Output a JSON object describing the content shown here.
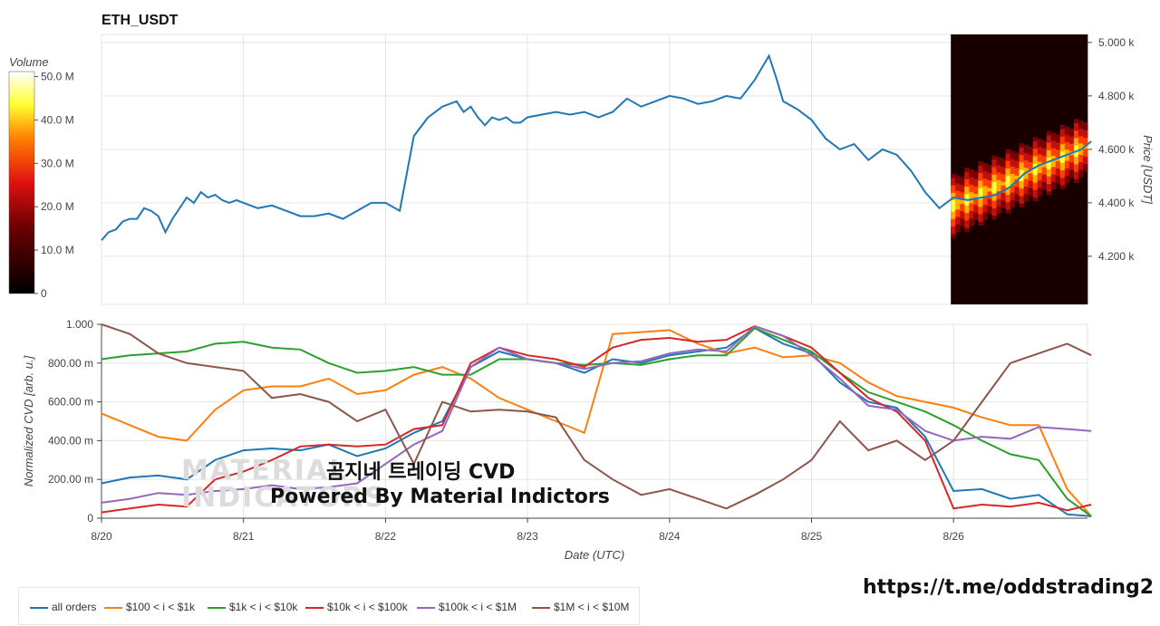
{
  "chart_data": [
    {
      "type": "line",
      "title": "ETH_USDT",
      "ylabel": "Price [USDT]",
      "ylim": [
        4020,
        5030
      ],
      "y_ticks": [
        "4.200 k",
        "4.400 k",
        "4.600 k",
        "4.800 k",
        "5.000 k"
      ],
      "series": [
        {
          "color": "#1f77b4",
          "x": [
            0,
            0.05,
            0.1,
            0.15,
            0.2,
            0.25,
            0.3,
            0.35,
            0.4,
            0.45,
            0.5,
            0.55,
            0.6,
            0.65,
            0.7,
            0.75,
            0.8,
            0.85,
            0.9,
            0.95,
            1.0,
            1.1,
            1.2,
            1.3,
            1.4,
            1.5,
            1.6,
            1.7,
            1.8,
            1.9,
            2.0,
            2.1,
            2.2,
            2.3,
            2.4,
            2.5,
            2.55,
            2.6,
            2.65,
            2.7,
            2.75,
            2.8,
            2.85,
            2.9,
            2.95,
            3.0,
            3.1,
            3.2,
            3.3,
            3.4,
            3.5,
            3.6,
            3.7,
            3.8,
            3.9,
            4.0,
            4.1,
            4.2,
            4.3,
            4.4,
            4.5,
            4.6,
            4.7,
            4.75,
            4.8,
            4.9,
            5.0,
            5.1,
            5.2,
            5.3,
            5.4,
            5.5,
            5.6,
            5.7,
            5.8,
            5.9,
            6.0,
            6.1,
            6.2,
            6.3,
            6.4,
            6.5,
            6.6,
            6.7,
            6.8,
            6.9,
            6.97
          ],
          "y": [
            4260,
            4290,
            4300,
            4330,
            4340,
            4340,
            4380,
            4370,
            4350,
            4290,
            4340,
            4380,
            4420,
            4400,
            4440,
            4420,
            4430,
            4410,
            4400,
            4410,
            4400,
            4380,
            4390,
            4370,
            4350,
            4350,
            4360,
            4340,
            4370,
            4400,
            4400,
            4370,
            4650,
            4720,
            4760,
            4780,
            4740,
            4760,
            4720,
            4690,
            4720,
            4710,
            4720,
            4700,
            4700,
            4720,
            4730,
            4740,
            4730,
            4740,
            4720,
            4740,
            4790,
            4760,
            4780,
            4800,
            4790,
            4770,
            4780,
            4800,
            4790,
            4860,
            4950,
            4870,
            4780,
            4750,
            4710,
            4640,
            4600,
            4620,
            4560,
            4600,
            4580,
            4520,
            4440,
            4380,
            4420,
            4410,
            4420,
            4430,
            4460,
            4510,
            4540,
            4560,
            4580,
            4600,
            4630
          ]
        }
      ]
    },
    {
      "type": "heatmap",
      "colorbar_label": "Volume",
      "colorbar_ticks": [
        "0",
        "10.0 M",
        "20.0 M",
        "30.0 M",
        "40.0 M",
        "50.0 M"
      ],
      "x_start": 6.0,
      "x_end": 6.97,
      "price_range": [
        4020,
        5030
      ]
    },
    {
      "type": "line",
      "xlabel": "Date (UTC)",
      "ylabel": "Normalized CVD [arb. u.]",
      "ylim": [
        0,
        1
      ],
      "y_ticks": [
        "0",
        "200.00 m",
        "400.00 m",
        "600.00 m",
        "800.00 m",
        "1.000"
      ],
      "x_ticks": [
        "8/20",
        "8/21",
        "8/22",
        "8/23",
        "8/24",
        "8/25",
        "8/26"
      ],
      "x": [
        0,
        0.2,
        0.4,
        0.6,
        0.8,
        1.0,
        1.2,
        1.4,
        1.6,
        1.8,
        2.0,
        2.2,
        2.4,
        2.6,
        2.8,
        3.0,
        3.2,
        3.4,
        3.6,
        3.8,
        4.0,
        4.2,
        4.4,
        4.6,
        4.8,
        5.0,
        5.2,
        5.4,
        5.6,
        5.8,
        6.0,
        6.2,
        6.4,
        6.6,
        6.8,
        6.97
      ],
      "series": [
        {
          "name": "all orders",
          "color": "#1f77b4",
          "values": [
            0.18,
            0.21,
            0.22,
            0.2,
            0.3,
            0.35,
            0.36,
            0.35,
            0.38,
            0.32,
            0.36,
            0.44,
            0.5,
            0.78,
            0.86,
            0.82,
            0.8,
            0.75,
            0.82,
            0.8,
            0.84,
            0.86,
            0.88,
            0.98,
            0.9,
            0.85,
            0.7,
            0.6,
            0.57,
            0.42,
            0.14,
            0.15,
            0.1,
            0.12,
            0.02,
            0.01
          ]
        },
        {
          "name": "$100 < i < $1k",
          "color": "#ff7f0e",
          "values": [
            0.54,
            0.48,
            0.42,
            0.4,
            0.56,
            0.66,
            0.68,
            0.68,
            0.72,
            0.64,
            0.66,
            0.74,
            0.78,
            0.72,
            0.62,
            0.56,
            0.5,
            0.44,
            0.95,
            0.96,
            0.97,
            0.9,
            0.85,
            0.88,
            0.83,
            0.84,
            0.8,
            0.7,
            0.63,
            0.6,
            0.57,
            0.52,
            0.48,
            0.48,
            0.15,
            0.01
          ]
        },
        {
          "name": "$1k < i < $10k",
          "color": "#2ca02c",
          "values": [
            0.82,
            0.84,
            0.85,
            0.86,
            0.9,
            0.91,
            0.88,
            0.87,
            0.8,
            0.75,
            0.76,
            0.78,
            0.74,
            0.74,
            0.82,
            0.82,
            0.8,
            0.79,
            0.8,
            0.79,
            0.82,
            0.84,
            0.84,
            0.98,
            0.92,
            0.86,
            0.75,
            0.65,
            0.6,
            0.55,
            0.48,
            0.4,
            0.33,
            0.3,
            0.1,
            0.01
          ]
        },
        {
          "name": "$10k < i < $100k",
          "color": "#d62728",
          "values": [
            0.03,
            0.05,
            0.07,
            0.06,
            0.2,
            0.24,
            0.3,
            0.37,
            0.38,
            0.37,
            0.38,
            0.46,
            0.48,
            0.8,
            0.88,
            0.84,
            0.82,
            0.78,
            0.88,
            0.92,
            0.93,
            0.91,
            0.92,
            0.99,
            0.94,
            0.88,
            0.75,
            0.62,
            0.55,
            0.4,
            0.05,
            0.07,
            0.06,
            0.08,
            0.04,
            0.07
          ]
        },
        {
          "name": "$100k < i < $1M",
          "color": "#9467bd",
          "values": [
            0.08,
            0.1,
            0.13,
            0.12,
            0.14,
            0.15,
            0.17,
            0.15,
            0.16,
            0.18,
            0.28,
            0.38,
            0.45,
            0.78,
            0.88,
            0.82,
            0.8,
            0.77,
            0.8,
            0.81,
            0.85,
            0.87,
            0.86,
            0.99,
            0.94,
            0.84,
            0.72,
            0.58,
            0.56,
            0.45,
            0.4,
            0.42,
            0.41,
            0.47,
            0.46,
            0.45
          ]
        },
        {
          "name": "$1M < i < $10M",
          "color": "#8c564b",
          "values": [
            1.0,
            0.95,
            0.85,
            0.8,
            0.78,
            0.76,
            0.62,
            0.64,
            0.6,
            0.5,
            0.56,
            0.28,
            0.6,
            0.55,
            0.56,
            0.55,
            0.52,
            0.3,
            0.2,
            0.12,
            0.15,
            0.1,
            0.05,
            0.12,
            0.2,
            0.3,
            0.5,
            0.35,
            0.4,
            0.3,
            0.4,
            0.6,
            0.8,
            0.85,
            0.9,
            0.84
          ]
        }
      ]
    }
  ],
  "overlay_text_1": "곰지네 트레이딩 CVD",
  "overlay_text_2": "Powered By Material Indictors",
  "watermark_text": "MATERIAL INDICATORS",
  "url_text": "https://t.me/oddstrading2"
}
